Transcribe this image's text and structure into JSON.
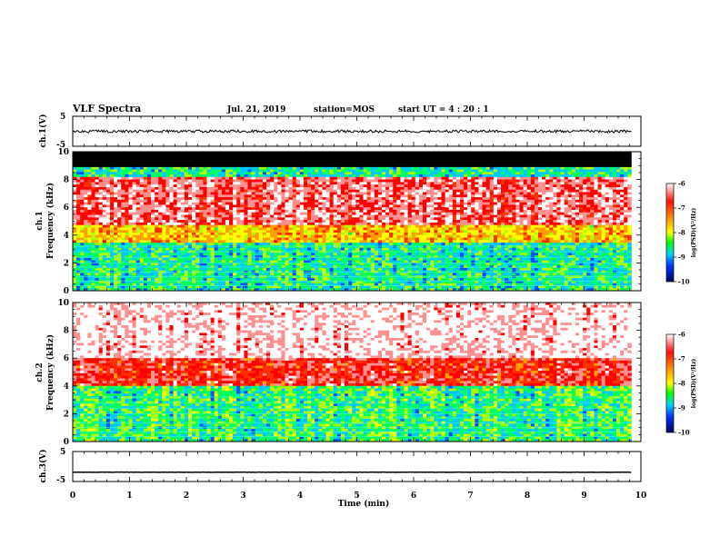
{
  "header": {
    "title": "VLF Spectra",
    "date": "Jul. 21, 2019",
    "station": "station=MOS",
    "start": "start UT =  4 : 20 : 1"
  },
  "chart_data": [
    {
      "type": "line",
      "ylabel": "ch.1(V)",
      "ylim": [
        -5,
        5
      ],
      "yticks": [
        "5",
        "-5"
      ],
      "xlim": [
        0,
        10
      ],
      "series_level": 0
    },
    {
      "type": "heatmap",
      "ylabel": "ch.1\nFrequency (kHz)",
      "ylabel_lines": [
        "ch.1",
        "Frequency (kHz)"
      ],
      "ylim": [
        0,
        10
      ],
      "yticks": [
        "0",
        "2",
        "4",
        "6",
        "8",
        "10"
      ],
      "xlim": [
        0,
        10
      ],
      "data_end_min": 9.83,
      "saturated_band_khz": [
        8.9,
        10
      ],
      "colorbar": {
        "label": "log(PSD)(V²/Hz)",
        "range": [
          -10,
          -6
        ],
        "ticks": [
          "-6",
          "-7",
          "-8",
          "-9",
          "-10"
        ]
      }
    },
    {
      "type": "heatmap",
      "ylabel": "ch.2\nFrequency (kHz)",
      "ylabel_lines": [
        "ch.2",
        "Frequency (kHz)"
      ],
      "ylim": [
        0,
        10
      ],
      "yticks": [
        "0",
        "2",
        "4",
        "6",
        "8",
        "10"
      ],
      "xlim": [
        0,
        10
      ],
      "data_end_min": 9.83,
      "colorbar": {
        "label": "log(PSD)(V²/Hz)",
        "range": [
          -10,
          -6
        ],
        "ticks": [
          "-6",
          "-7",
          "-8",
          "-9",
          "-10"
        ]
      }
    },
    {
      "type": "line",
      "ylabel": "ch.3(V)",
      "ylim": [
        -5,
        5
      ],
      "yticks": [
        "5",
        "-5"
      ],
      "xlim": [
        0,
        10
      ],
      "xlabel": "Time (min)",
      "xticks": [
        "0",
        "1",
        "2",
        "3",
        "4",
        "5",
        "6",
        "7",
        "8",
        "9",
        "10"
      ],
      "series_level": -1.9
    }
  ],
  "colors": {
    "saturated": "#000000",
    "colormap": [
      "#ffffff",
      "#ff0000",
      "#ffd200",
      "#00ff00",
      "#0077ff",
      "#0000c8",
      "#000000"
    ]
  }
}
